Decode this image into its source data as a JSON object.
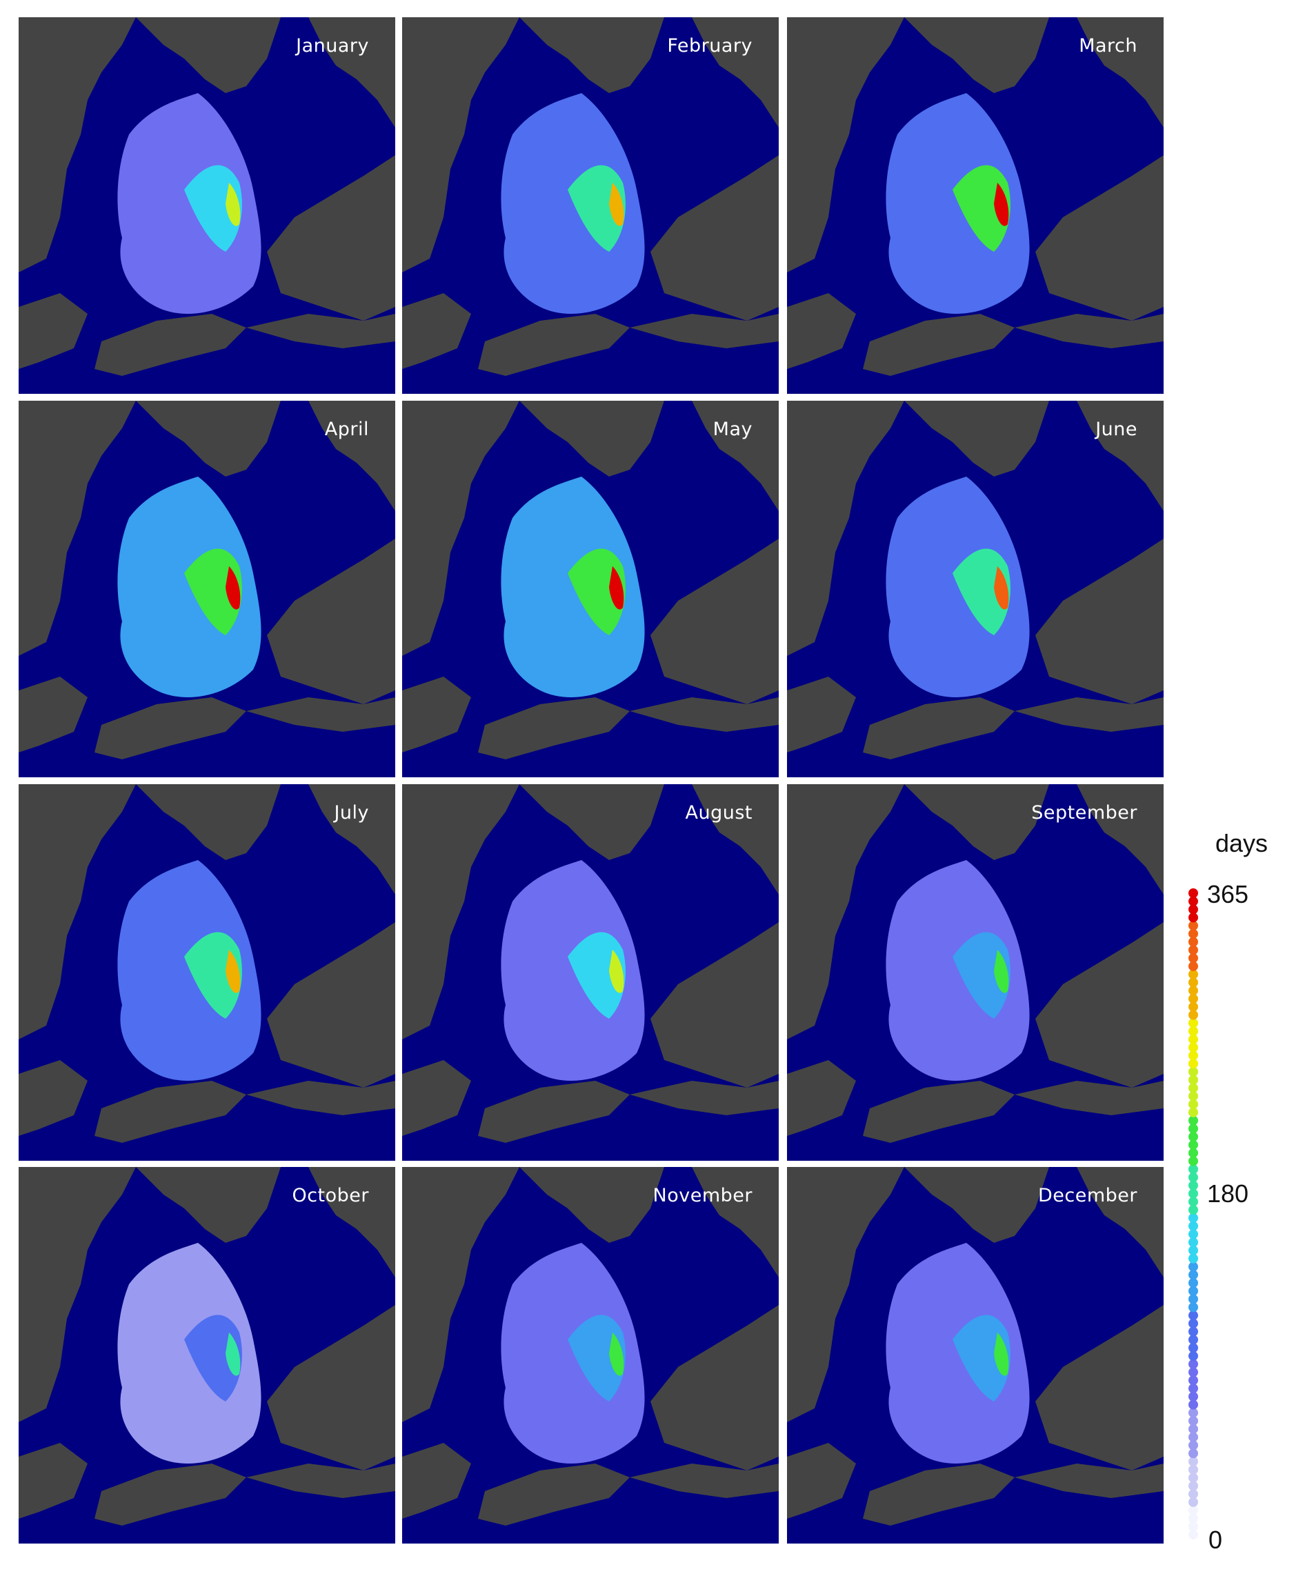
{
  "panels": [
    {
      "month": "January",
      "max_fraction": 0.72
    },
    {
      "month": "February",
      "max_fraction": 0.88
    },
    {
      "month": "March",
      "max_fraction": 0.98
    },
    {
      "month": "April",
      "max_fraction": 1.0
    },
    {
      "month": "May",
      "max_fraction": 1.0
    },
    {
      "month": "June",
      "max_fraction": 0.93
    },
    {
      "month": "July",
      "max_fraction": 0.85
    },
    {
      "month": "August",
      "max_fraction": 0.72
    },
    {
      "month": "September",
      "max_fraction": 0.6
    },
    {
      "month": "October",
      "max_fraction": 0.5
    },
    {
      "month": "November",
      "max_fraction": 0.58
    },
    {
      "month": "December",
      "max_fraction": 0.64
    }
  ],
  "colorbar": {
    "title": "days",
    "ticks": [
      "365",
      "180",
      "0"
    ],
    "min": 0,
    "max": 365,
    "colors": [
      "#f4f4ff",
      "#c9c9f5",
      "#9a9af0",
      "#6e6ef0",
      "#4f6ff0",
      "#3aa0f0",
      "#33d6f0",
      "#33e6a0",
      "#3ee640",
      "#c8f020",
      "#f0f000",
      "#f0b000",
      "#f06010",
      "#e00000"
    ]
  },
  "colors": {
    "ocean": "#000080",
    "land": "#444444",
    "panel_text": "#ffffff"
  }
}
